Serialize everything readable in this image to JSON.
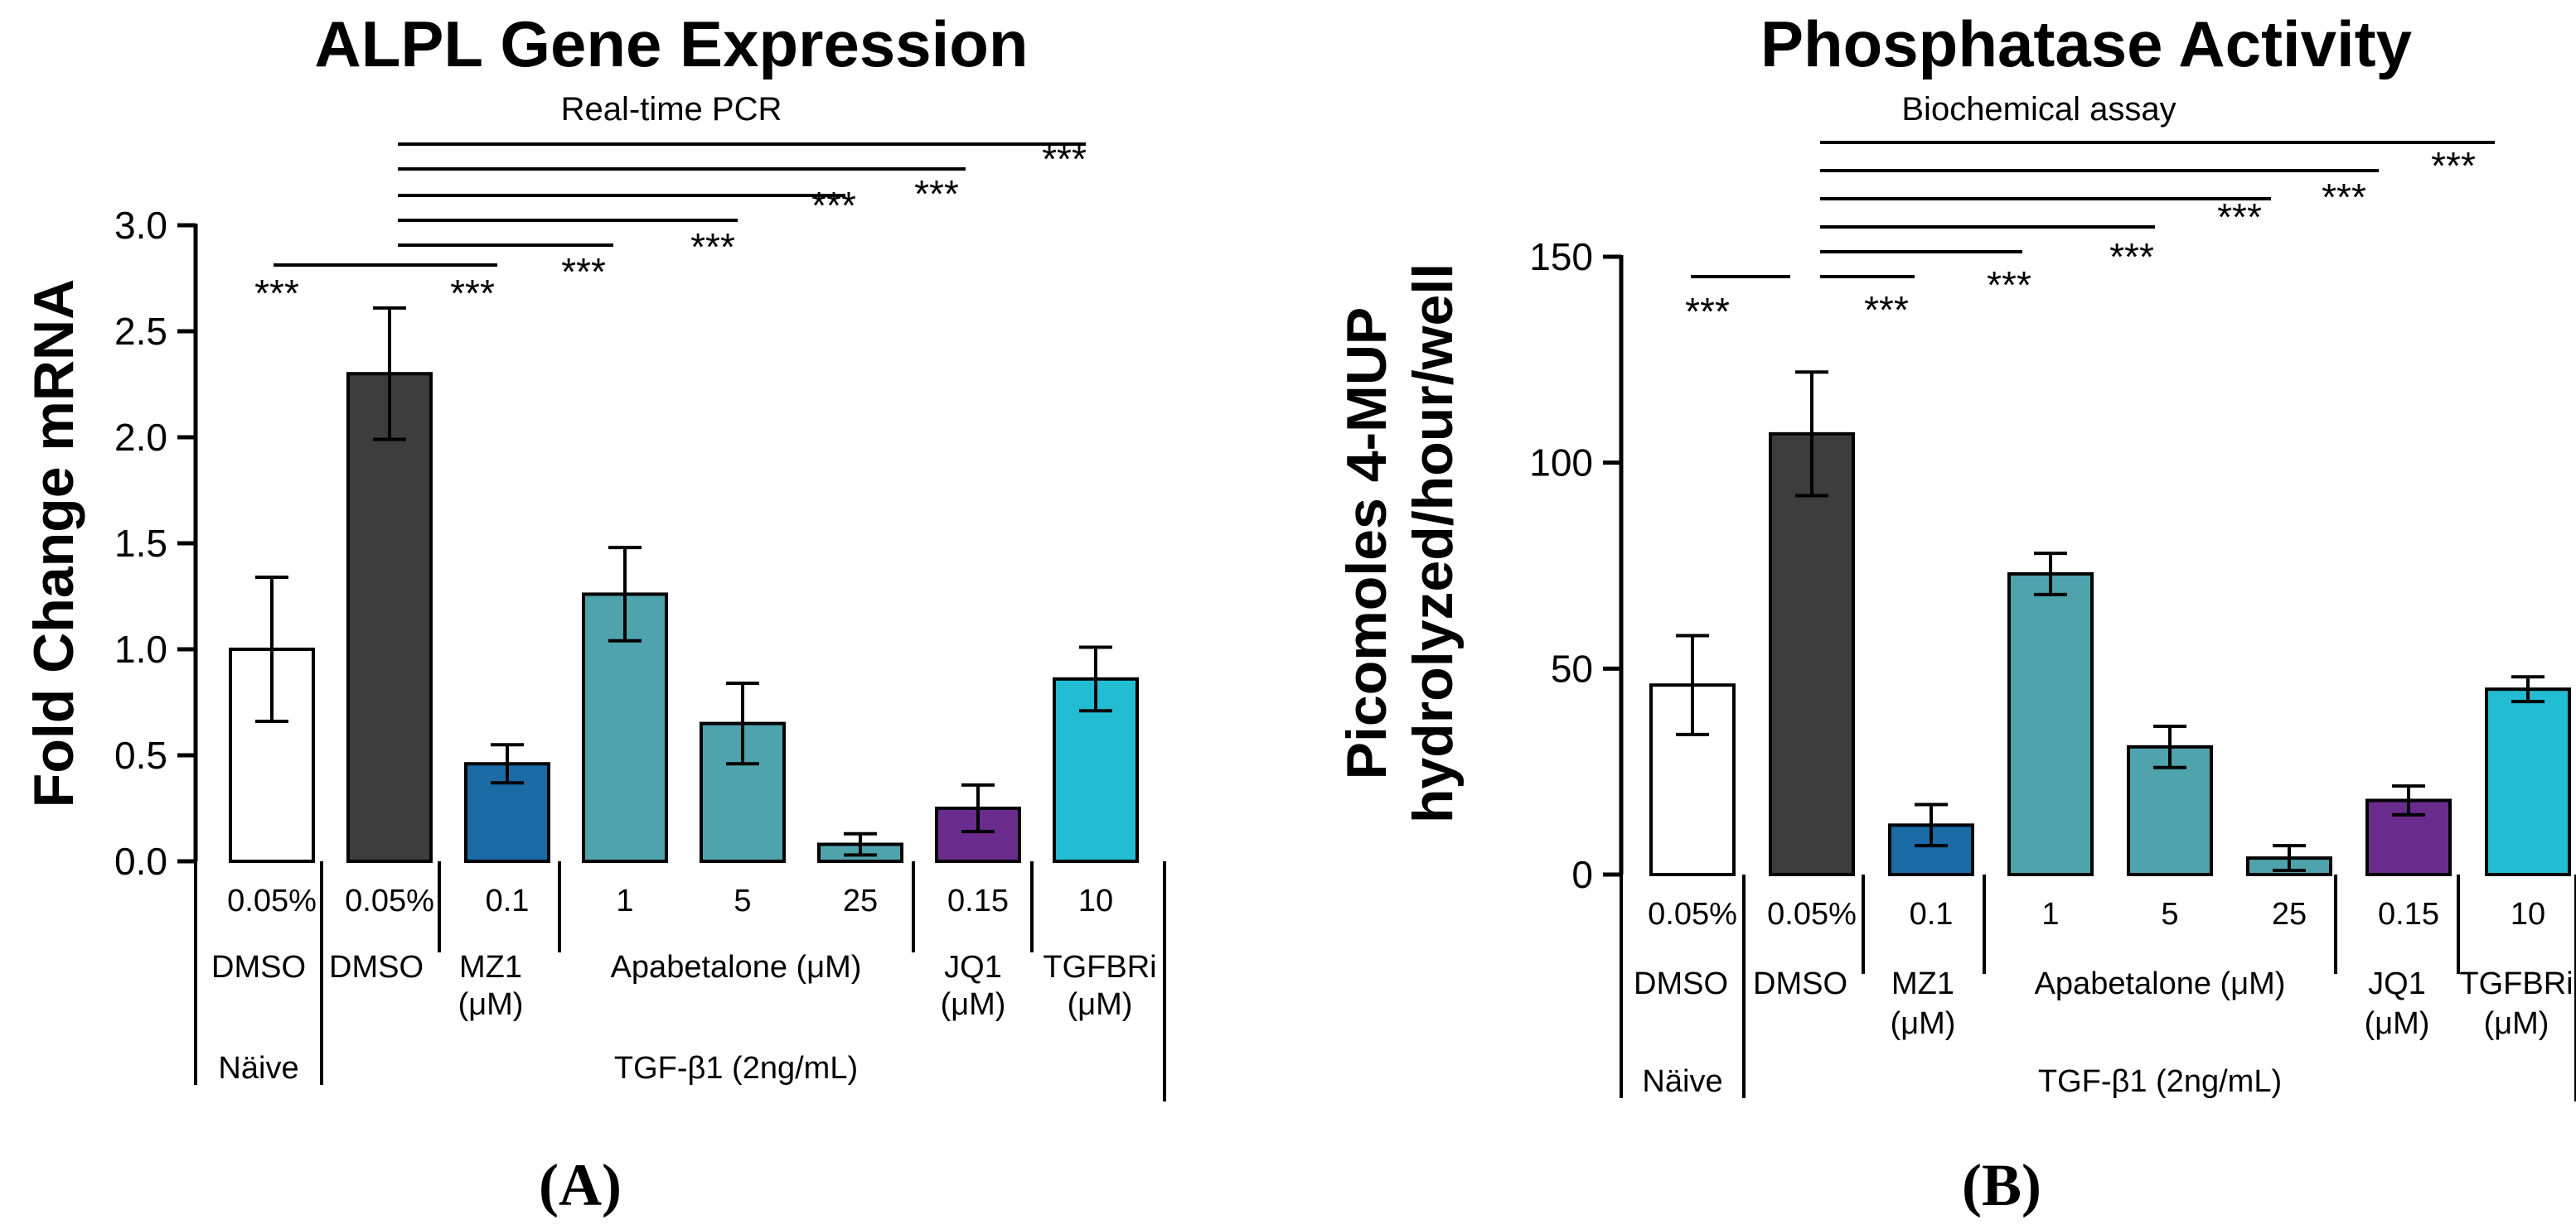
{
  "chart_data": [
    {
      "type": "bar",
      "panel_label": "(A)",
      "title": "ALPL Gene Expression",
      "subtitle": "Real-time PCR",
      "ylabel": "Fold Change mRNA",
      "ylim": [
        0,
        3.0
      ],
      "yticks": [
        "0.0",
        "0.5",
        "1.0",
        "1.5",
        "2.0",
        "2.5",
        "3.0"
      ],
      "categories": [
        "0.05%",
        "0.05%",
        "0.1",
        "1",
        "5",
        "25",
        "0.15",
        "10"
      ],
      "values": [
        1.0,
        2.3,
        0.46,
        1.26,
        0.65,
        0.08,
        0.25,
        0.86
      ],
      "errors": [
        0.34,
        0.31,
        0.09,
        0.22,
        0.19,
        0.05,
        0.11,
        0.15
      ],
      "colors": [
        "#ffffff",
        "#3d3d3d",
        "#1a6ba6",
        "#4fa3ad",
        "#4fa3ad",
        "#4fa3ad",
        "#6a2c8c",
        "#22bdd2"
      ],
      "significance": [
        "***",
        "***",
        "***",
        "***",
        "***",
        "***",
        "***"
      ],
      "group_labels": [
        "DMSO",
        "DMSO",
        "MZ1",
        "(μM)",
        "Apabetalone (μM)",
        "JQ1",
        "(μM)",
        "TGFBRi",
        "(μM)"
      ],
      "treatment_labels": [
        "Näive",
        "TGF-β1 (2ng/mL)"
      ]
    },
    {
      "type": "bar",
      "panel_label": "(B)",
      "title": "Phosphatase Activity",
      "subtitle": "Biochemical assay",
      "ylabel_lines": [
        "Picomoles 4-MUP",
        "hydrolyzed/hour/well"
      ],
      "ylim": [
        0,
        150
      ],
      "yticks": [
        "0",
        "50",
        "100",
        "150"
      ],
      "categories": [
        "0.05%",
        "0.05%",
        "0.1",
        "1",
        "5",
        "25",
        "0.15",
        "10"
      ],
      "values": [
        46,
        107,
        12,
        73,
        31,
        4,
        18,
        45
      ],
      "errors": [
        12,
        15,
        5,
        5,
        5,
        3,
        3.5,
        3
      ],
      "colors": [
        "#ffffff",
        "#3d3d3d",
        "#1a6ba6",
        "#4fa3ad",
        "#4fa3ad",
        "#4fa3ad",
        "#6a2c8c",
        "#22bdd2"
      ],
      "significance": [
        "***",
        "***",
        "***",
        "***",
        "***",
        "***",
        "***"
      ],
      "group_labels": [
        "DMSO",
        "DMSO",
        "MZ1",
        "(μM)",
        "Apabetalone (μM)",
        "JQ1",
        "(μM)",
        "TGFBRi",
        "(μM)"
      ],
      "treatment_labels": [
        "Näive",
        "TGF-β1 (2ng/mL)"
      ]
    }
  ]
}
